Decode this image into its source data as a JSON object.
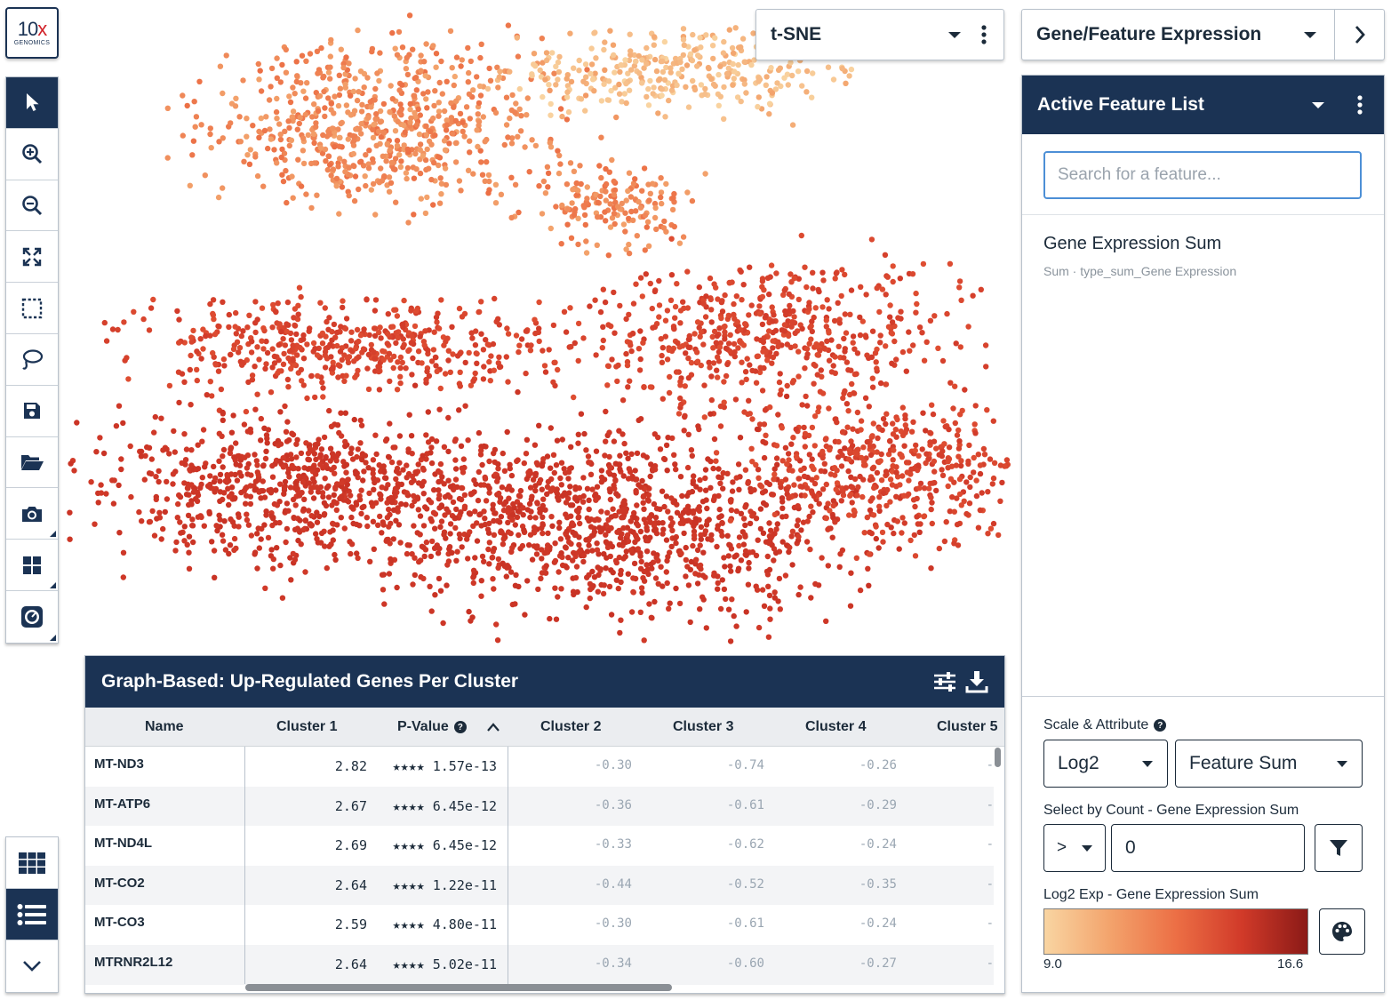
{
  "logo": {
    "line1": "10",
    "line1_accent": "x",
    "line2": "GENOMICS"
  },
  "toolbar": {
    "tools": [
      "pointer-icon",
      "zoom-in-icon",
      "zoom-out-icon",
      "fit-screen-icon",
      "box-select-icon",
      "lasso-icon",
      "save-icon",
      "folder-open-icon",
      "camera-icon",
      "layout-icon",
      "gauge-icon"
    ],
    "bottom_tools": [
      "grid-view-icon",
      "list-view-icon",
      "chevron-down-icon"
    ]
  },
  "projection": {
    "selected": "t-SNE"
  },
  "panel_mode": {
    "selected": "Gene/Feature Expression"
  },
  "feature_list": {
    "title": "Active Feature List",
    "search_placeholder": "Search for a feature...",
    "items": [
      {
        "name": "Gene Expression Sum",
        "subtitle": "Sum · type_sum_Gene Expression"
      }
    ]
  },
  "scale": {
    "label": "Scale & Attribute",
    "scale_value": "Log2",
    "attribute_value": "Feature Sum",
    "select_label": "Select by Count - Gene Expression Sum",
    "operator": ">",
    "count_value": "0",
    "legend_label": "Log2 Exp - Gene Expression Sum",
    "min": "9.0",
    "max": "16.6"
  },
  "colors": {
    "navy": "#1b3354",
    "low": "#f9d5a2",
    "mid": "#ec6f45",
    "high": "#d13a29",
    "top": "#8b1a17"
  },
  "table": {
    "title": "Graph-Based: Up-Regulated Genes Per Cluster",
    "columns": [
      "Name",
      "Cluster 1",
      "P-Value",
      "Cluster 2",
      "Cluster 3",
      "Cluster 4",
      "Cluster 5"
    ],
    "rows": [
      {
        "name": "MT-ND3",
        "c1": "2.82",
        "pv": "★★★★ 1.57e-13",
        "c2": "-0.30",
        "c3": "-0.74",
        "c4": "-0.26",
        "c5": "-"
      },
      {
        "name": "MT-ATP6",
        "c1": "2.67",
        "pv": "★★★★ 6.45e-12",
        "c2": "-0.36",
        "c3": "-0.61",
        "c4": "-0.29",
        "c5": "-"
      },
      {
        "name": "MT-ND4L",
        "c1": "2.69",
        "pv": "★★★★ 6.45e-12",
        "c2": "-0.33",
        "c3": "-0.62",
        "c4": "-0.24",
        "c5": "-"
      },
      {
        "name": "MT-CO2",
        "c1": "2.64",
        "pv": "★★★★ 1.22e-11",
        "c2": "-0.44",
        "c3": "-0.52",
        "c4": "-0.35",
        "c5": "-"
      },
      {
        "name": "MT-CO3",
        "c1": "2.59",
        "pv": "★★★★ 4.80e-11",
        "c2": "-0.30",
        "c3": "-0.61",
        "c4": "-0.24",
        "c5": "-"
      },
      {
        "name": "MTRNR2L12",
        "c1": "2.64",
        "pv": "★★★★ 5.02e-11",
        "c2": "-0.34",
        "c3": "-0.60",
        "c4": "-0.27",
        "c5": "-"
      }
    ]
  }
}
